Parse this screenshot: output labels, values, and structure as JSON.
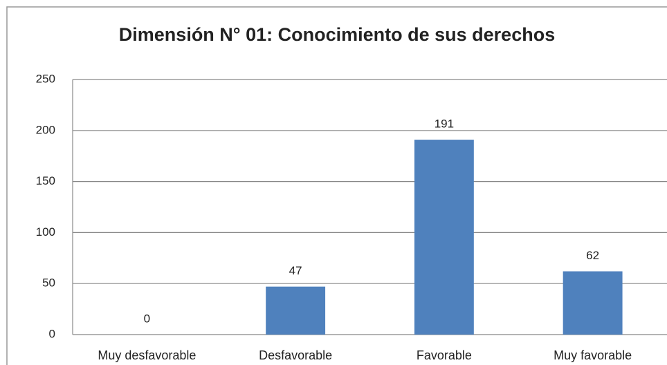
{
  "chart_data": {
    "type": "bar",
    "title": "Dimensión N° 01: Conocimiento de sus derechos",
    "categories": [
      "Muy desfavorable",
      "Desfavorable",
      "Favorable",
      "Muy favorable"
    ],
    "values": [
      0,
      47,
      191,
      62
    ],
    "color": "#4f81bd",
    "ylim": [
      0,
      250
    ],
    "yticks": [
      0,
      50,
      100,
      150,
      200,
      250
    ],
    "grid": true
  }
}
